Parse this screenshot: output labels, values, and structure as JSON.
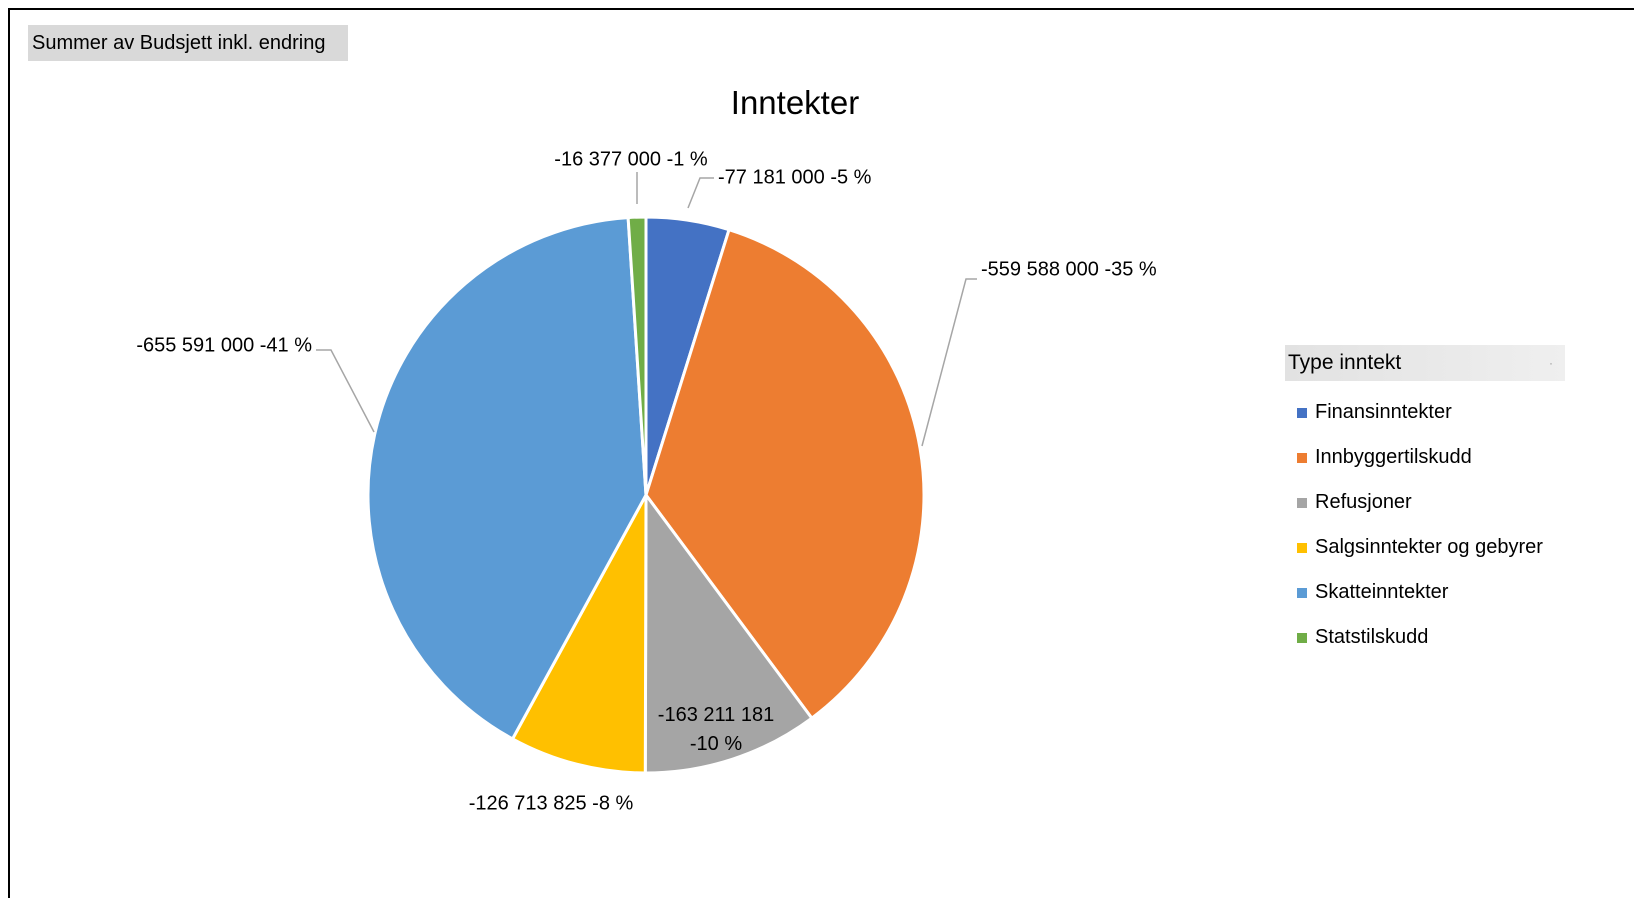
{
  "pivot_field_label": "Summer av Budsjett inkl. endring",
  "legend_header": "Type inntekt",
  "chart_data": {
    "type": "pie",
    "title": "Inntekter",
    "legend_placement": "right",
    "slices": [
      {
        "name": "Finansinntekter",
        "value": -77181000,
        "label": "-77 181 000 -5 %",
        "color": "#4472c4"
      },
      {
        "name": "Innbyggertilskudd",
        "value": -559588000,
        "label": "-559 588 000 -35 %",
        "color": "#ed7d31"
      },
      {
        "name": "Refusjoner",
        "value": -163211181,
        "label": "-163 211 181 -10 %",
        "color": "#a5a5a5"
      },
      {
        "name": "Salgsinntekter og gebyrer",
        "value": -126713825,
        "label": "-126 713 825 -8 %",
        "color": "#ffc000"
      },
      {
        "name": "Skatteinntekter",
        "value": -655591000,
        "label": "-655 591 000 -41 %",
        "color": "#5b9bd5"
      },
      {
        "name": "Statstilskudd",
        "value": -16377000,
        "label": "-16 377 000 -1 %",
        "color": "#70ad47"
      }
    ]
  }
}
